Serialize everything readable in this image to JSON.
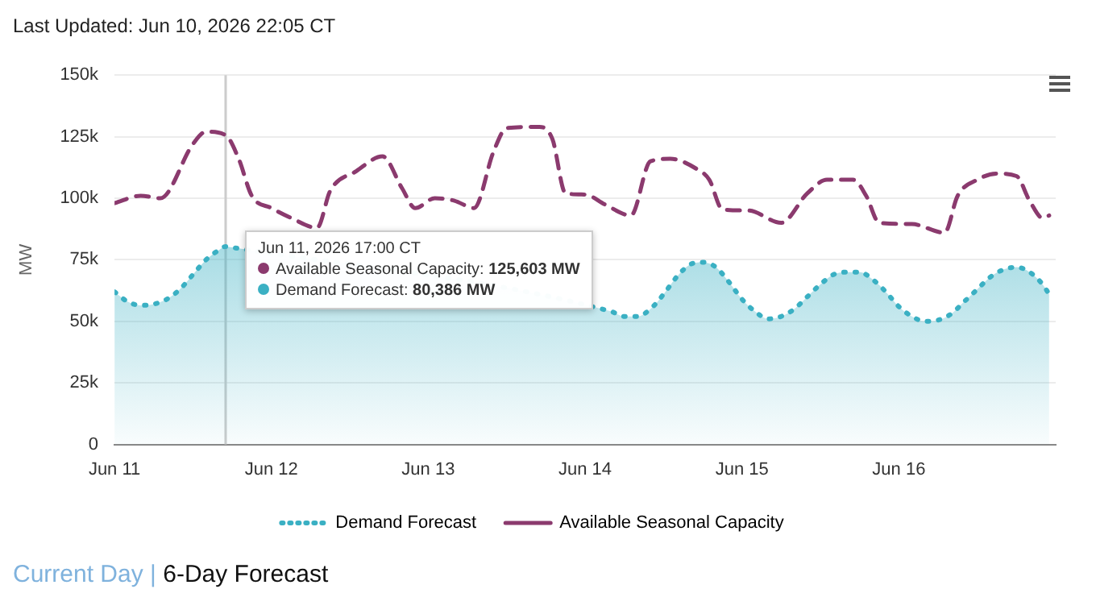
{
  "chart_data": {
    "type": "line",
    "ylabel": "MW",
    "legend": "bottom",
    "grid": "y",
    "annotations": [
      "Last Updated: Jun 10, 2026 22:05 CT",
      "Current Day | 6-Day Forecast",
      {
        "text": "Jun 11, 2026 17:00 CT",
        "x": "2026-06-11T17:00",
        "y": 80386
      },
      "Available Seasonal Capacity: 125,603 MW",
      "Demand Forecast: 80,386 MW"
    ],
    "ref_lines": [
      {
        "axis": "x",
        "value": "2026-06-11T17:00",
        "color": "#cccccc"
      }
    ],
    "xlim": [
      "2026-06-11T00:00",
      "2026-06-17T00:00"
    ],
    "xticks": [
      {
        "value": "2026-06-11",
        "label": "Jun 11"
      },
      {
        "value": "2026-06-12",
        "label": "Jun 12"
      },
      {
        "value": "2026-06-13",
        "label": "Jun 13"
      },
      {
        "value": "2026-06-14",
        "label": "Jun 14"
      },
      {
        "value": "2026-06-15",
        "label": "Jun 15"
      },
      {
        "value": "2026-06-16",
        "label": "Jun 16"
      }
    ],
    "ylim": [
      0,
      150000
    ],
    "yticks": [
      0,
      {
        "value": 25000,
        "label": "25k"
      },
      {
        "value": 50000,
        "label": "50k"
      },
      {
        "value": 75000,
        "label": "75k"
      },
      {
        "value": 100000,
        "label": "100k"
      },
      {
        "value": 125000,
        "label": "125k"
      },
      {
        "value": 150000,
        "label": "150k"
      }
    ],
    "series": [
      {
        "name": "Demand Forecast",
        "type": "area",
        "color": "#3ab0c3",
        "line_style": "dotted",
        "marker": "none",
        "x": [
          "2026-06-11T00:00",
          "2026-06-11T02:00",
          "2026-06-11T04:00",
          "2026-06-11T06:00",
          "2026-06-11T08:00",
          "2026-06-11T10:00",
          "2026-06-11T12:00",
          "2026-06-11T14:00",
          "2026-06-11T16:00",
          "2026-06-11T17:00",
          "2026-06-11T18:00",
          "2026-06-14T04:00",
          "2026-06-14T06:00",
          "2026-06-14T08:00",
          "2026-06-14T10:00",
          "2026-06-14T12:00",
          "2026-06-14T14:00",
          "2026-06-14T16:00",
          "2026-06-14T18:00",
          "2026-06-14T20:00",
          "2026-06-14T22:00",
          "2026-06-15T00:00",
          "2026-06-15T02:00",
          "2026-06-15T04:00",
          "2026-06-15T06:00",
          "2026-06-15T08:00",
          "2026-06-15T10:00",
          "2026-06-15T12:00",
          "2026-06-15T14:00",
          "2026-06-15T16:00",
          "2026-06-15T18:00",
          "2026-06-15T20:00",
          "2026-06-15T22:00",
          "2026-06-16T00:00",
          "2026-06-16T02:00",
          "2026-06-16T04:00",
          "2026-06-16T06:00",
          "2026-06-16T08:00",
          "2026-06-16T10:00",
          "2026-06-16T12:00",
          "2026-06-16T14:00",
          "2026-06-16T16:00",
          "2026-06-16T18:00",
          "2026-06-16T20:00",
          "2026-06-16T22:00",
          "2026-06-16T23:00"
        ],
        "values": [
          62000,
          58000,
          56500,
          57000,
          59000,
          63000,
          69000,
          75000,
          79000,
          80386,
          80000,
          54000,
          52000,
          52000,
          55000,
          61000,
          68000,
          73000,
          74000,
          72000,
          66000,
          59000,
          54000,
          51000,
          52000,
          55000,
          60000,
          65000,
          69000,
          70000,
          70000,
          67000,
          62000,
          56000,
          52000,
          50000,
          50500,
          53000,
          58000,
          63000,
          68000,
          71000,
          72000,
          70000,
          65000,
          61000
        ]
      },
      {
        "name": "Available Seasonal Capacity",
        "type": "line",
        "color": "#8b3a6e",
        "line_style": "dashed",
        "marker": "none",
        "x": [
          "2026-06-11T00:00",
          "2026-06-11T04:00",
          "2026-06-11T07:00",
          "2026-06-11T12:00",
          "2026-06-11T14:00",
          "2026-06-11T17:00",
          "2026-06-11T19:00",
          "2026-06-11T21:00",
          "2026-06-12T00:00",
          "2026-06-12T03:00",
          "2026-06-12T07:00",
          "2026-06-12T09:00",
          "2026-06-12T13:00",
          "2026-06-12T17:00",
          "2026-06-12T20:00",
          "2026-06-12T22:00",
          "2026-06-13T01:00",
          "2026-06-13T04:00",
          "2026-06-13T07:00",
          "2026-06-13T10:00",
          "2026-06-13T12:00",
          "2026-06-13T17:00",
          "2026-06-13T19:00",
          "2026-06-13T21:00",
          "2026-06-14T00:00",
          "2026-06-14T03:00",
          "2026-06-14T07:00",
          "2026-06-14T10:00",
          "2026-06-14T13:00",
          "2026-06-14T17:00",
          "2026-06-14T19:00",
          "2026-06-14T21:00",
          "2026-06-15T01:00",
          "2026-06-15T06:00",
          "2026-06-15T10:00",
          "2026-06-15T13:00",
          "2026-06-15T17:00",
          "2026-06-15T19:00",
          "2026-06-15T21:00",
          "2026-06-16T02:00",
          "2026-06-16T07:00",
          "2026-06-16T09:00",
          "2026-06-16T12:00",
          "2026-06-16T15:00",
          "2026-06-16T18:00",
          "2026-06-16T20:00",
          "2026-06-16T22:00",
          "2026-06-16T23:00"
        ],
        "values": [
          98000,
          101000,
          100000,
          122000,
          127000,
          125603,
          116000,
          101000,
          96000,
          92000,
          88000,
          103000,
          111000,
          117000,
          104000,
          96000,
          100000,
          99000,
          96000,
          119000,
          128500,
          129000,
          124000,
          102000,
          101500,
          97500,
          93000,
          115000,
          116000,
          112000,
          107500,
          95500,
          95000,
          90000,
          102000,
          107500,
          107500,
          101000,
          90000,
          89500,
          86000,
          101000,
          107500,
          110000,
          109000,
          99000,
          92000,
          93000
        ]
      }
    ]
  }
}
